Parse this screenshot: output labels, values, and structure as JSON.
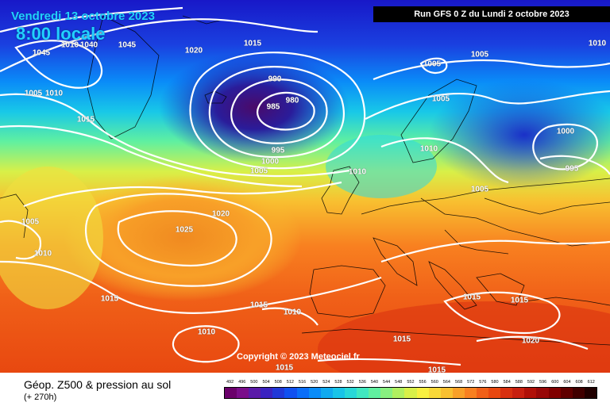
{
  "header": {
    "date_text": "Vendredi 13 octobre 2023",
    "time_text": "8:00 locale",
    "run_text": "Run GFS 0 Z du Lundi 2 octobre 2023"
  },
  "map": {
    "copyright": "Copyright © 2023 Meteociel.fr",
    "isobar_labels": [
      "1045",
      "1040",
      "1045",
      "1010",
      "1005",
      "1010",
      "1015",
      "1020",
      "1015",
      "990",
      "985",
      "980",
      "995",
      "1000",
      "1005",
      "1010",
      "1005",
      "1010",
      "1005",
      "1005",
      "1000",
      "995",
      "1005",
      "1010",
      "1020",
      "1005",
      "1010",
      "1025",
      "1015",
      "1010",
      "1015",
      "1015",
      "1010",
      "1015",
      "1015",
      "1020",
      "1015",
      "1015"
    ]
  },
  "footer": {
    "title": "Géop. Z500 & pression au sol",
    "subtitle": "(+ 270h)"
  },
  "legend": {
    "labels": [
      "492",
      "496",
      "500",
      "504",
      "508",
      "512",
      "516",
      "520",
      "524",
      "528",
      "532",
      "536",
      "540",
      "544",
      "548",
      "552",
      "556",
      "560",
      "564",
      "568",
      "572",
      "576",
      "580",
      "584",
      "588",
      "592",
      "596",
      "600",
      "604",
      "608",
      "612"
    ],
    "colors": [
      "#6b006b",
      "#7a0d8a",
      "#5a1aa8",
      "#3a22c0",
      "#2038d8",
      "#1050f0",
      "#0a6ef8",
      "#0a8cf8",
      "#10aaf0",
      "#18c4e8",
      "#28d8d8",
      "#40e8c0",
      "#60f0a0",
      "#88f080",
      "#b0f060",
      "#d8f048",
      "#f8f040",
      "#f8d838",
      "#f8c030",
      "#f8a028",
      "#f88020",
      "#f06018",
      "#e84810",
      "#d83010",
      "#c82010",
      "#b01008",
      "#980808",
      "#800000",
      "#600000",
      "#400000",
      "#200000"
    ]
  }
}
